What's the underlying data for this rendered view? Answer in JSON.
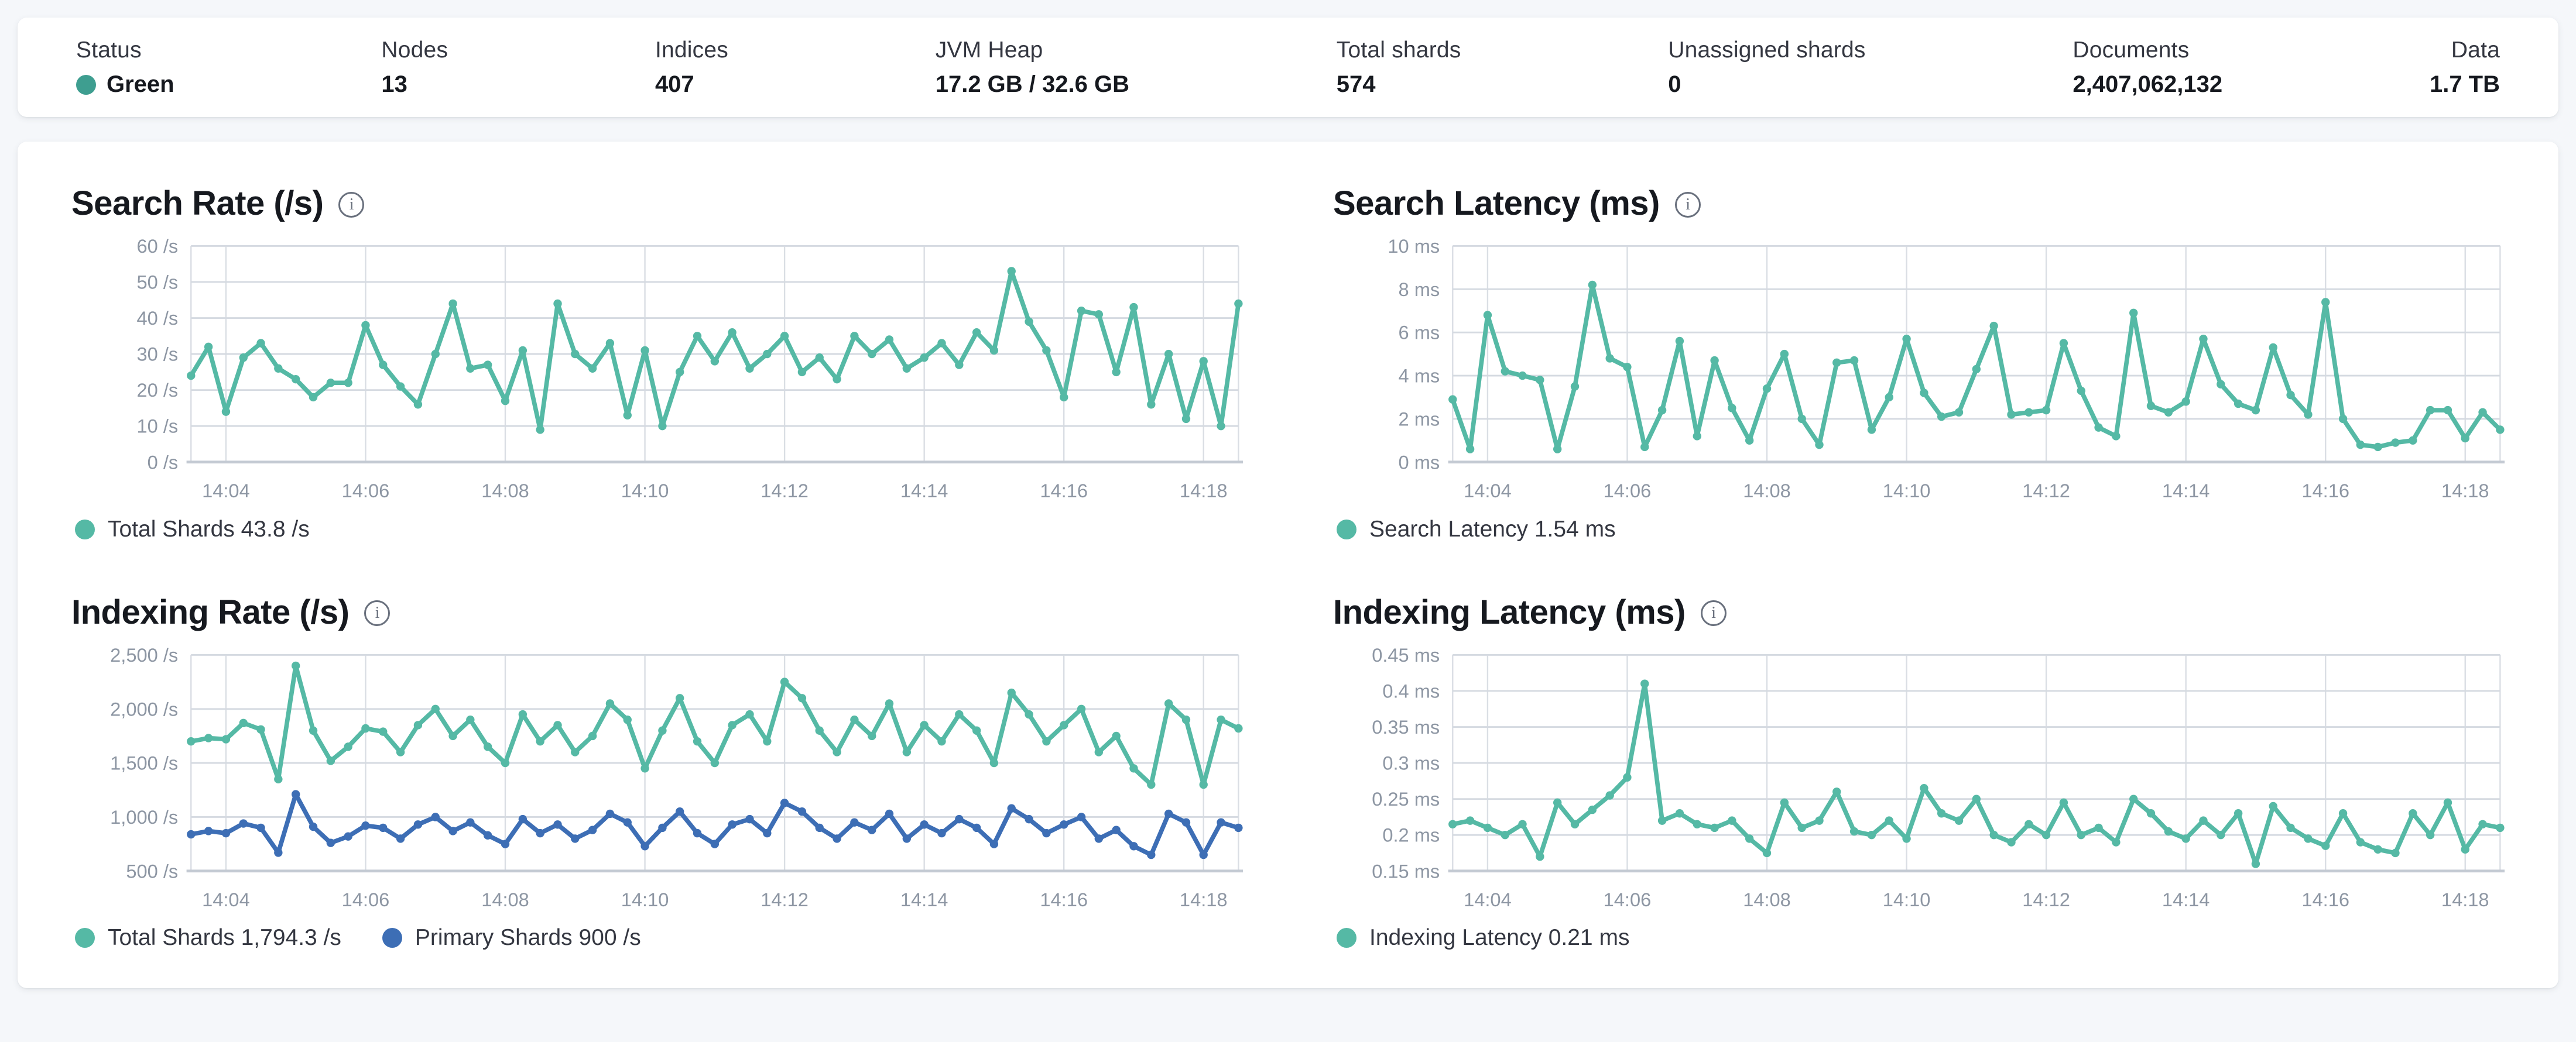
{
  "statusbar": {
    "items": [
      {
        "label": "Status",
        "value": "Green",
        "dot_color": "#3e9e90"
      },
      {
        "label": "Nodes",
        "value": "13"
      },
      {
        "label": "Indices",
        "value": "407"
      },
      {
        "label": "JVM Heap",
        "value": "17.2 GB / 32.6 GB"
      },
      {
        "label": "Total shards",
        "value": "574"
      },
      {
        "label": "Unassigned shards",
        "value": "0"
      },
      {
        "label": "Documents",
        "value": "2,407,062,132"
      },
      {
        "label": "Data",
        "value": "1.7 TB"
      }
    ]
  },
  "icons": {
    "info": "i"
  },
  "colors": {
    "teal": "#55b9a5",
    "blue": "#3d6eb5",
    "grid": "#d5dae1",
    "grid_v": "#dadee4",
    "axis_line": "#c4cad3",
    "axis_text": "#8d96a3",
    "title_text": "#16191f"
  },
  "chart_data": [
    {
      "type": "line",
      "title": "Search Rate (/s)",
      "ylabel": "/s",
      "ylim": [
        0,
        60
      ],
      "y_ticks": [
        {
          "v": 0,
          "label": "0 /s"
        },
        {
          "v": 10,
          "label": "10 /s"
        },
        {
          "v": 20,
          "label": "20 /s"
        },
        {
          "v": 30,
          "label": "30 /s"
        },
        {
          "v": 40,
          "label": "40 /s"
        },
        {
          "v": 50,
          "label": "50 /s"
        },
        {
          "v": 60,
          "label": "60 /s"
        }
      ],
      "x_range": [
        "14:03:30",
        "14:18:30"
      ],
      "x_tick_labels": [
        "14:04",
        "14:06",
        "14:08",
        "14:10",
        "14:12",
        "14:14",
        "14:16",
        "14:18"
      ],
      "x_tick_indices": [
        2,
        10,
        18,
        26,
        34,
        42,
        50,
        58
      ],
      "x_count": 61,
      "grid": true,
      "legend_position": "bottom",
      "series": [
        {
          "name": "Total Shards",
          "color": "teal",
          "values": [
            24,
            32,
            14,
            29,
            33,
            26,
            23,
            18,
            22,
            22,
            38,
            27,
            21,
            16,
            30,
            44,
            26,
            27,
            17,
            31,
            9,
            44,
            30,
            26,
            33,
            13,
            31,
            10,
            25,
            35,
            28,
            36,
            26,
            30,
            35,
            25,
            29,
            23,
            35,
            30,
            34,
            26,
            29,
            33,
            27,
            36,
            31,
            53,
            39,
            31,
            18,
            42,
            41,
            25,
            43,
            16,
            30,
            12,
            28,
            10,
            44
          ]
        }
      ],
      "legend": [
        {
          "label": "Total Shards 43.8 /s",
          "color": "teal"
        }
      ]
    },
    {
      "type": "line",
      "title": "Search Latency (ms)",
      "ylabel": "ms",
      "ylim": [
        0,
        10
      ],
      "y_ticks": [
        {
          "v": 0,
          "label": "0 ms"
        },
        {
          "v": 2,
          "label": "2 ms"
        },
        {
          "v": 4,
          "label": "4 ms"
        },
        {
          "v": 6,
          "label": "6 ms"
        },
        {
          "v": 8,
          "label": "8 ms"
        },
        {
          "v": 10,
          "label": "10 ms"
        }
      ],
      "x_range": [
        "14:03:30",
        "14:18:30"
      ],
      "x_tick_labels": [
        "14:04",
        "14:06",
        "14:08",
        "14:10",
        "14:12",
        "14:14",
        "14:16",
        "14:18"
      ],
      "x_tick_indices": [
        2,
        10,
        18,
        26,
        34,
        42,
        50,
        58
      ],
      "x_count": 61,
      "grid": true,
      "legend_position": "bottom",
      "series": [
        {
          "name": "Search Latency",
          "color": "teal",
          "values": [
            2.9,
            0.6,
            6.8,
            4.2,
            4.0,
            3.8,
            0.6,
            3.5,
            8.2,
            4.8,
            4.4,
            0.7,
            2.4,
            5.6,
            1.2,
            4.7,
            2.5,
            1.0,
            3.4,
            5.0,
            2.0,
            0.8,
            4.6,
            4.7,
            1.5,
            3.0,
            5.7,
            3.2,
            2.1,
            2.3,
            4.3,
            6.3,
            2.2,
            2.3,
            2.4,
            5.5,
            3.3,
            1.6,
            1.2,
            6.9,
            2.6,
            2.3,
            2.8,
            5.7,
            3.6,
            2.7,
            2.4,
            5.3,
            3.1,
            2.2,
            7.4,
            2.0,
            0.8,
            0.7,
            0.9,
            1.0,
            2.4,
            2.4,
            1.1,
            2.3,
            1.5
          ]
        }
      ],
      "legend": [
        {
          "label": "Search Latency 1.54 ms",
          "color": "teal"
        }
      ]
    },
    {
      "type": "line",
      "title": "Indexing Rate (/s)",
      "ylabel": "/s",
      "ylim": [
        500,
        2500
      ],
      "y_ticks": [
        {
          "v": 500,
          "label": "500 /s"
        },
        {
          "v": 1000,
          "label": "1,000 /s"
        },
        {
          "v": 1500,
          "label": "1,500 /s"
        },
        {
          "v": 2000,
          "label": "2,000 /s"
        },
        {
          "v": 2500,
          "label": "2,500 /s"
        }
      ],
      "x_range": [
        "14:03:30",
        "14:18:30"
      ],
      "x_tick_labels": [
        "14:04",
        "14:06",
        "14:08",
        "14:10",
        "14:12",
        "14:14",
        "14:16",
        "14:18"
      ],
      "x_tick_indices": [
        2,
        10,
        18,
        26,
        34,
        42,
        50,
        58
      ],
      "x_count": 61,
      "grid": true,
      "legend_position": "bottom",
      "series": [
        {
          "name": "Total Shards",
          "color": "teal",
          "values": [
            1700,
            1730,
            1720,
            1870,
            1810,
            1350,
            2400,
            1800,
            1520,
            1650,
            1820,
            1790,
            1600,
            1850,
            2000,
            1750,
            1900,
            1650,
            1500,
            1950,
            1700,
            1850,
            1600,
            1750,
            2050,
            1900,
            1450,
            1800,
            2100,
            1700,
            1500,
            1850,
            1950,
            1700,
            2250,
            2100,
            1800,
            1600,
            1900,
            1750,
            2050,
            1600,
            1850,
            1700,
            1950,
            1800,
            1500,
            2150,
            1950,
            1700,
            1850,
            2000,
            1600,
            1750,
            1450,
            1300,
            2050,
            1900,
            1300,
            1900,
            1820
          ]
        },
        {
          "name": "Primary Shards",
          "color": "blue",
          "values": [
            840,
            870,
            850,
            940,
            900,
            670,
            1210,
            910,
            760,
            820,
            920,
            900,
            800,
            930,
            1000,
            870,
            950,
            830,
            750,
            980,
            850,
            930,
            800,
            880,
            1030,
            950,
            730,
            900,
            1050,
            850,
            750,
            930,
            980,
            850,
            1130,
            1050,
            900,
            800,
            950,
            880,
            1030,
            800,
            930,
            850,
            980,
            900,
            750,
            1080,
            980,
            850,
            930,
            1000,
            800,
            880,
            730,
            650,
            1030,
            950,
            650,
            950,
            900
          ]
        }
      ],
      "legend": [
        {
          "label": "Total Shards 1,794.3 /s",
          "color": "teal"
        },
        {
          "label": "Primary Shards 900 /s",
          "color": "blue"
        }
      ]
    },
    {
      "type": "line",
      "title": "Indexing Latency (ms)",
      "ylabel": "ms",
      "ylim": [
        0.15,
        0.45
      ],
      "y_ticks": [
        {
          "v": 0.15,
          "label": "0.15 ms"
        },
        {
          "v": 0.2,
          "label": "0.2 ms"
        },
        {
          "v": 0.25,
          "label": "0.25 ms"
        },
        {
          "v": 0.3,
          "label": "0.3 ms"
        },
        {
          "v": 0.35,
          "label": "0.35 ms"
        },
        {
          "v": 0.4,
          "label": "0.4 ms"
        },
        {
          "v": 0.45,
          "label": "0.45 ms"
        }
      ],
      "x_range": [
        "14:03:30",
        "14:18:30"
      ],
      "x_tick_labels": [
        "14:04",
        "14:06",
        "14:08",
        "14:10",
        "14:12",
        "14:14",
        "14:16",
        "14:18"
      ],
      "x_tick_indices": [
        2,
        10,
        18,
        26,
        34,
        42,
        50,
        58
      ],
      "x_count": 61,
      "grid": true,
      "legend_position": "bottom",
      "series": [
        {
          "name": "Indexing Latency",
          "color": "teal",
          "values": [
            0.215,
            0.22,
            0.21,
            0.2,
            0.215,
            0.17,
            0.245,
            0.215,
            0.235,
            0.255,
            0.28,
            0.41,
            0.22,
            0.23,
            0.215,
            0.21,
            0.22,
            0.195,
            0.175,
            0.245,
            0.21,
            0.22,
            0.26,
            0.205,
            0.2,
            0.22,
            0.195,
            0.265,
            0.23,
            0.22,
            0.25,
            0.2,
            0.19,
            0.215,
            0.2,
            0.245,
            0.2,
            0.21,
            0.19,
            0.25,
            0.23,
            0.205,
            0.195,
            0.22,
            0.2,
            0.23,
            0.16,
            0.24,
            0.21,
            0.195,
            0.185,
            0.23,
            0.19,
            0.18,
            0.175,
            0.23,
            0.2,
            0.245,
            0.18,
            0.215,
            0.21
          ]
        }
      ],
      "legend": [
        {
          "label": "Indexing Latency 0.21 ms",
          "color": "teal"
        }
      ]
    }
  ]
}
